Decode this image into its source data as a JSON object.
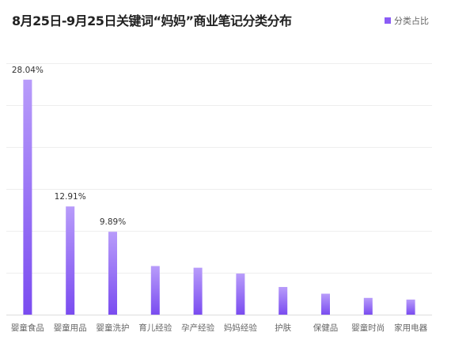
{
  "title": "8月25日-9月25日关键词“妈妈”商业笔记分类分布",
  "legend": {
    "label": "分类占比",
    "color": "#8b5cf6"
  },
  "colors": {
    "bar_top": "#b89cfa",
    "bar_bottom": "#7a4cf0"
  },
  "chart_data": {
    "type": "bar",
    "title": "8月25日-9月25日关键词“妈妈”商业笔记分类分布",
    "categories": [
      "婴童食品",
      "婴童用品",
      "婴童洗护",
      "育儿经验",
      "孕产经验",
      "妈妈经验",
      "护肤",
      "保健品",
      "婴童时尚",
      "家用电器"
    ],
    "series": [
      {
        "name": "分类占比",
        "values": [
          28.04,
          12.91,
          9.89,
          5.8,
          5.6,
          4.9,
          3.3,
          2.5,
          2.0,
          1.8
        ]
      }
    ],
    "data_labels": [
      "28.04%",
      "12.91%",
      "9.89%",
      null,
      null,
      null,
      null,
      null,
      null,
      null
    ],
    "ylim": [
      0,
      30
    ],
    "grid": true,
    "legend_position": "top-right",
    "xlabel": "",
    "ylabel": ""
  }
}
